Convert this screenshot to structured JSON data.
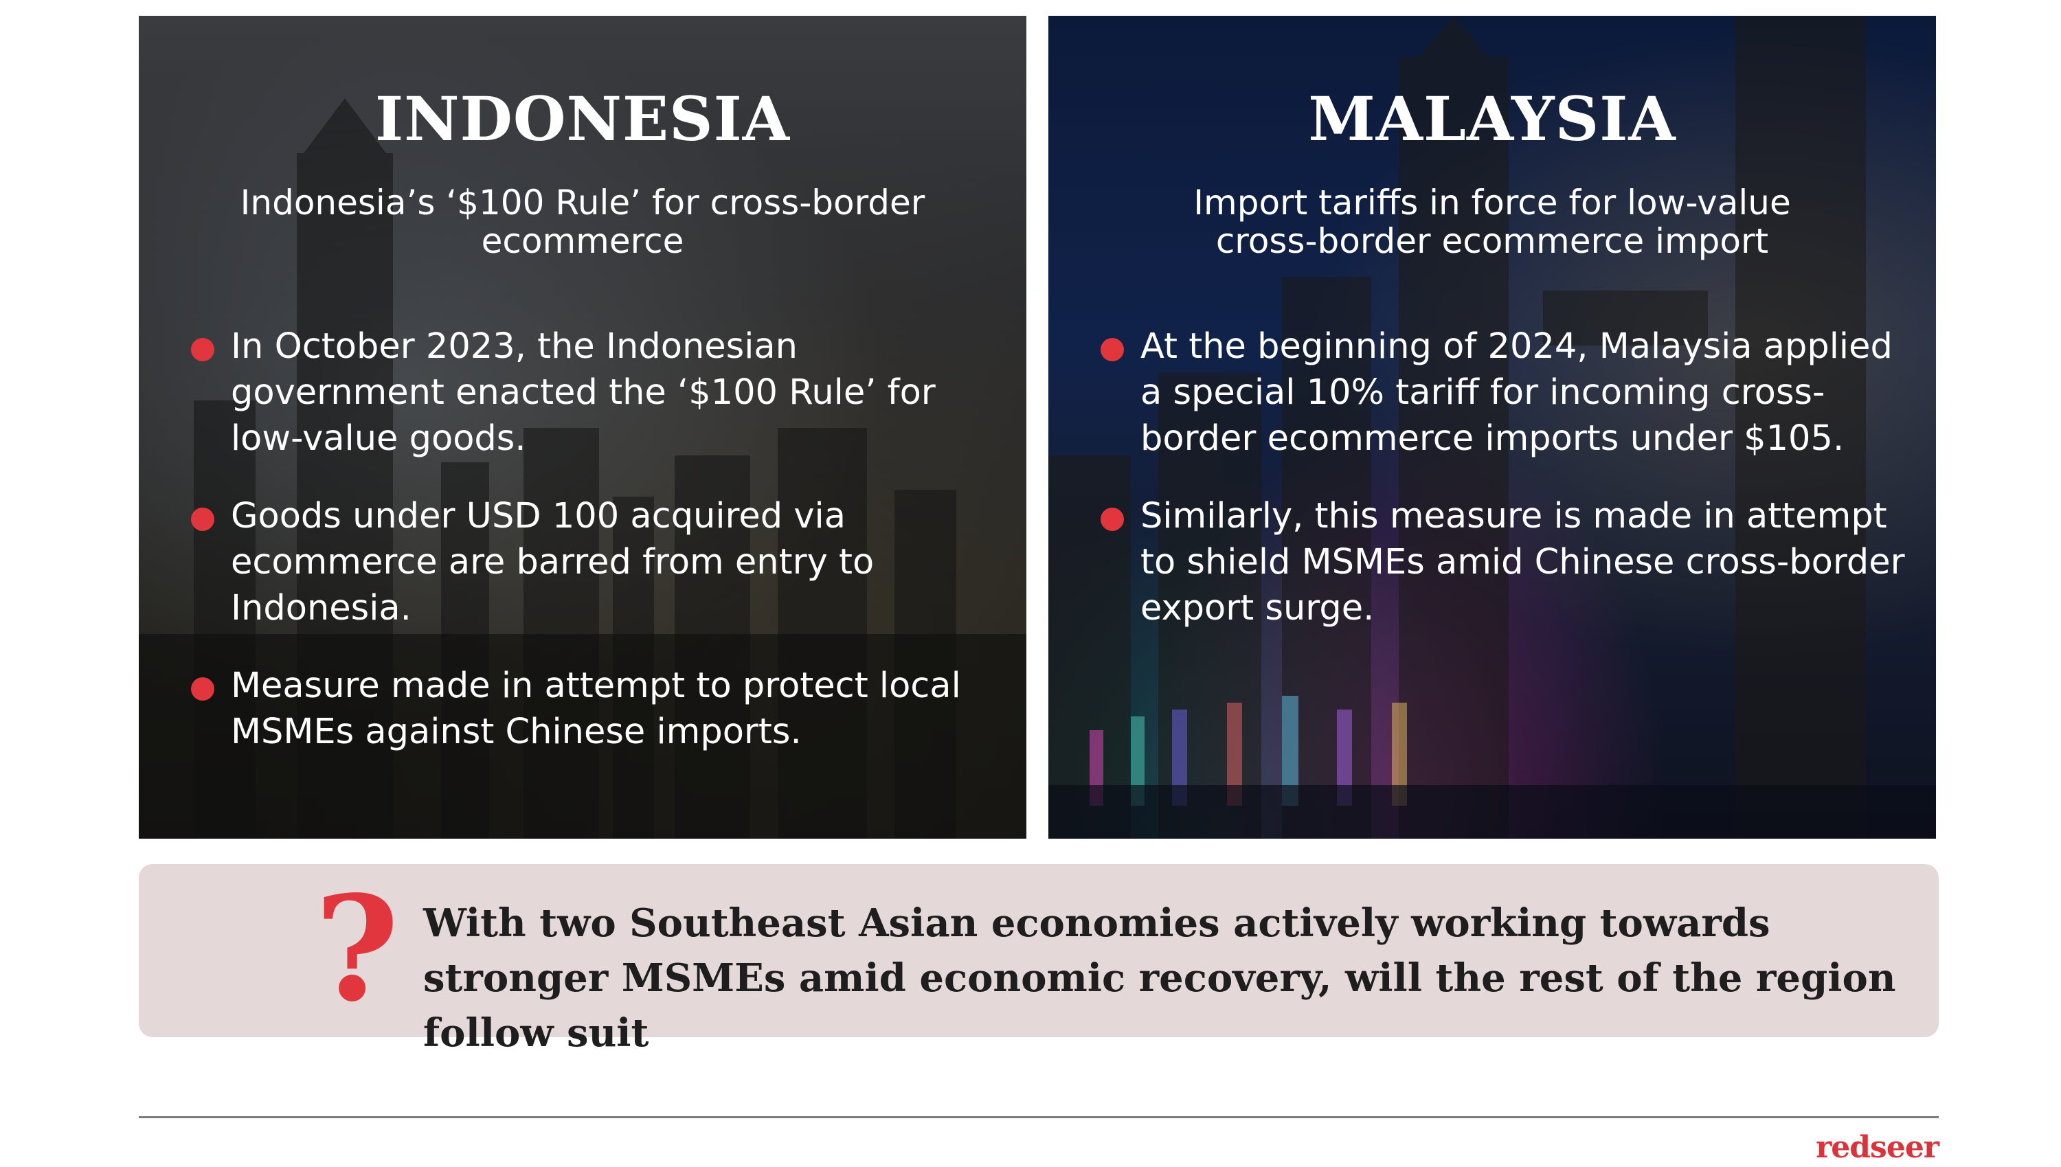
{
  "panels": {
    "indonesia": {
      "title": "INDONESIA",
      "subtitle": "Indonesia’s ‘$100 Rule’ for cross-border ecommerce",
      "bullets": [
        "In October 2023, the Indonesian government enacted the ‘$100 Rule’ for low-value goods.",
        "Goods under USD 100 acquired via ecommerce are barred from entry to Indonesia.",
        "Measure made in attempt to protect local MSMEs against Chinese imports."
      ]
    },
    "malaysia": {
      "title": "MALAYSIA",
      "subtitle": "Import tariffs in force for low-value cross-border ecommerce import",
      "bullets": [
        "At the beginning of 2024, Malaysia applied a special 10% tariff for incoming cross-border ecommerce imports under $105.",
        "Similarly, this measure is made in attempt to shield MSMEs amid Chinese cross-border export surge."
      ]
    }
  },
  "callout": {
    "icon": "question-mark-icon",
    "text": "With two Southeast Asian economies actively working towards stronger MSMEs amid economic recovery, will the rest of the region follow suit"
  },
  "footer": {
    "brand": "redseer"
  },
  "colors": {
    "accent": "#e2363f",
    "callout_bg": "#e5d8d8",
    "brand": "#d9343c"
  }
}
